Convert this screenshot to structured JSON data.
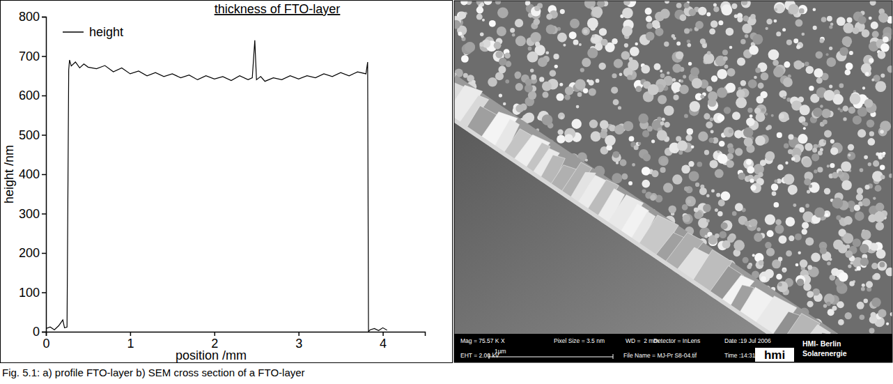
{
  "chart_data": {
    "type": "line",
    "title": "thickness of FTO-layer",
    "x_label": "position /mm",
    "y_label": "height /nm",
    "x": [
      0,
      0.05,
      0.1,
      0.15,
      0.2,
      0.22,
      0.25,
      0.27,
      0.28,
      0.3,
      0.35,
      0.4,
      0.45,
      0.5,
      0.6,
      0.7,
      0.8,
      0.9,
      1.0,
      1.1,
      1.2,
      1.3,
      1.4,
      1.5,
      1.6,
      1.7,
      1.8,
      1.9,
      2.0,
      2.1,
      2.2,
      2.3,
      2.4,
      2.45,
      2.48,
      2.5,
      2.55,
      2.6,
      2.7,
      2.8,
      2.9,
      3.0,
      3.1,
      3.2,
      3.3,
      3.4,
      3.5,
      3.6,
      3.7,
      3.8,
      3.82,
      3.83,
      3.85,
      3.9,
      3.95,
      4.0,
      4.05
    ],
    "series": [
      {
        "name": "height",
        "color": "#000000",
        "values": [
          8,
          12,
          5,
          15,
          30,
          10,
          12,
          665,
          690,
          675,
          685,
          670,
          680,
          672,
          668,
          676,
          660,
          670,
          655,
          662,
          650,
          658,
          648,
          655,
          645,
          652,
          640,
          650,
          642,
          648,
          638,
          650,
          640,
          645,
          740,
          640,
          648,
          636,
          645,
          640,
          650,
          642,
          650,
          645,
          655,
          648,
          658,
          650,
          660,
          655,
          685,
          0,
          5,
          8,
          3,
          10,
          4
        ]
      }
    ],
    "xlim": [
      0,
      4.5
    ],
    "xticks": [
      0,
      1,
      2,
      3,
      4
    ],
    "ylim": [
      0,
      800
    ],
    "yticks": [
      0,
      100,
      200,
      300,
      400,
      500,
      600,
      700,
      800
    ],
    "legend": "upper left",
    "grid": false
  },
  "image": {
    "info": [
      "Mag = 75.57 K X",
      "Pixel Size = 3.5 nm",
      "WD =  2 mm",
      "Detector = InLens",
      "Date :19 Jul 2006",
      "EHT = 2.00 kV",
      "File Name = MJ-Pr S8-04.tif",
      "Time :14:31"
    ],
    "scale_bar": "1µm",
    "logo": "hmi",
    "institute": [
      "HMI- Berlin",
      "Solarenergie"
    ]
  },
  "caption": "Fig. 5.1: a) profile FTO-layer b) SEM cross section of a FTO-layer"
}
